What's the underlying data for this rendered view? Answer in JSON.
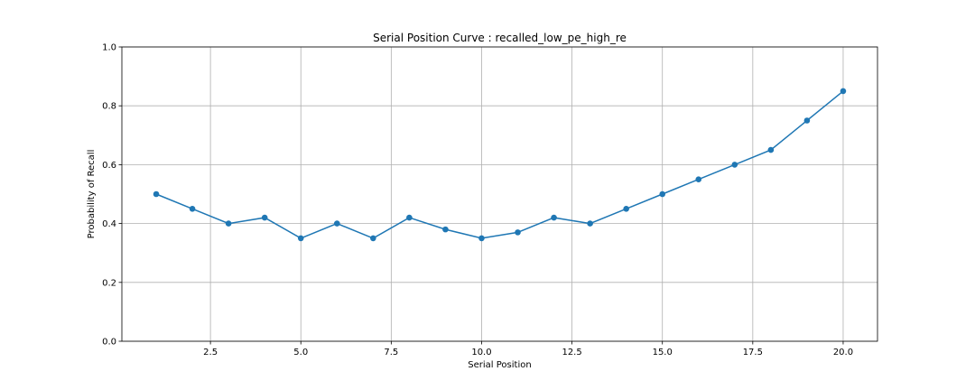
{
  "chart_data": {
    "type": "line",
    "title": "Serial Position Curve : recalled_low_pe_high_re",
    "xlabel": "Serial Position",
    "ylabel": "Probability of Recall",
    "xlim": [
      0.05,
      20.95
    ],
    "ylim": [
      0.0,
      1.0
    ],
    "x_ticks": [
      "2.5",
      "5.0",
      "7.5",
      "10.0",
      "12.5",
      "15.0",
      "17.5",
      "20.0"
    ],
    "y_ticks": [
      "0.0",
      "0.2",
      "0.4",
      "0.6",
      "0.8",
      "1.0"
    ],
    "grid": true,
    "series": [
      {
        "color": "#1f77b4",
        "marker": "circle",
        "x": [
          1,
          2,
          3,
          4,
          5,
          6,
          7,
          8,
          9,
          10,
          11,
          12,
          13,
          14,
          15,
          16,
          17,
          18,
          19,
          20
        ],
        "values": [
          0.5,
          0.45,
          0.4,
          0.42,
          0.35,
          0.4,
          0.35,
          0.42,
          0.38,
          0.35,
          0.37,
          0.42,
          0.4,
          0.45,
          0.5,
          0.55,
          0.6,
          0.65,
          0.75,
          0.85
        ]
      }
    ]
  }
}
